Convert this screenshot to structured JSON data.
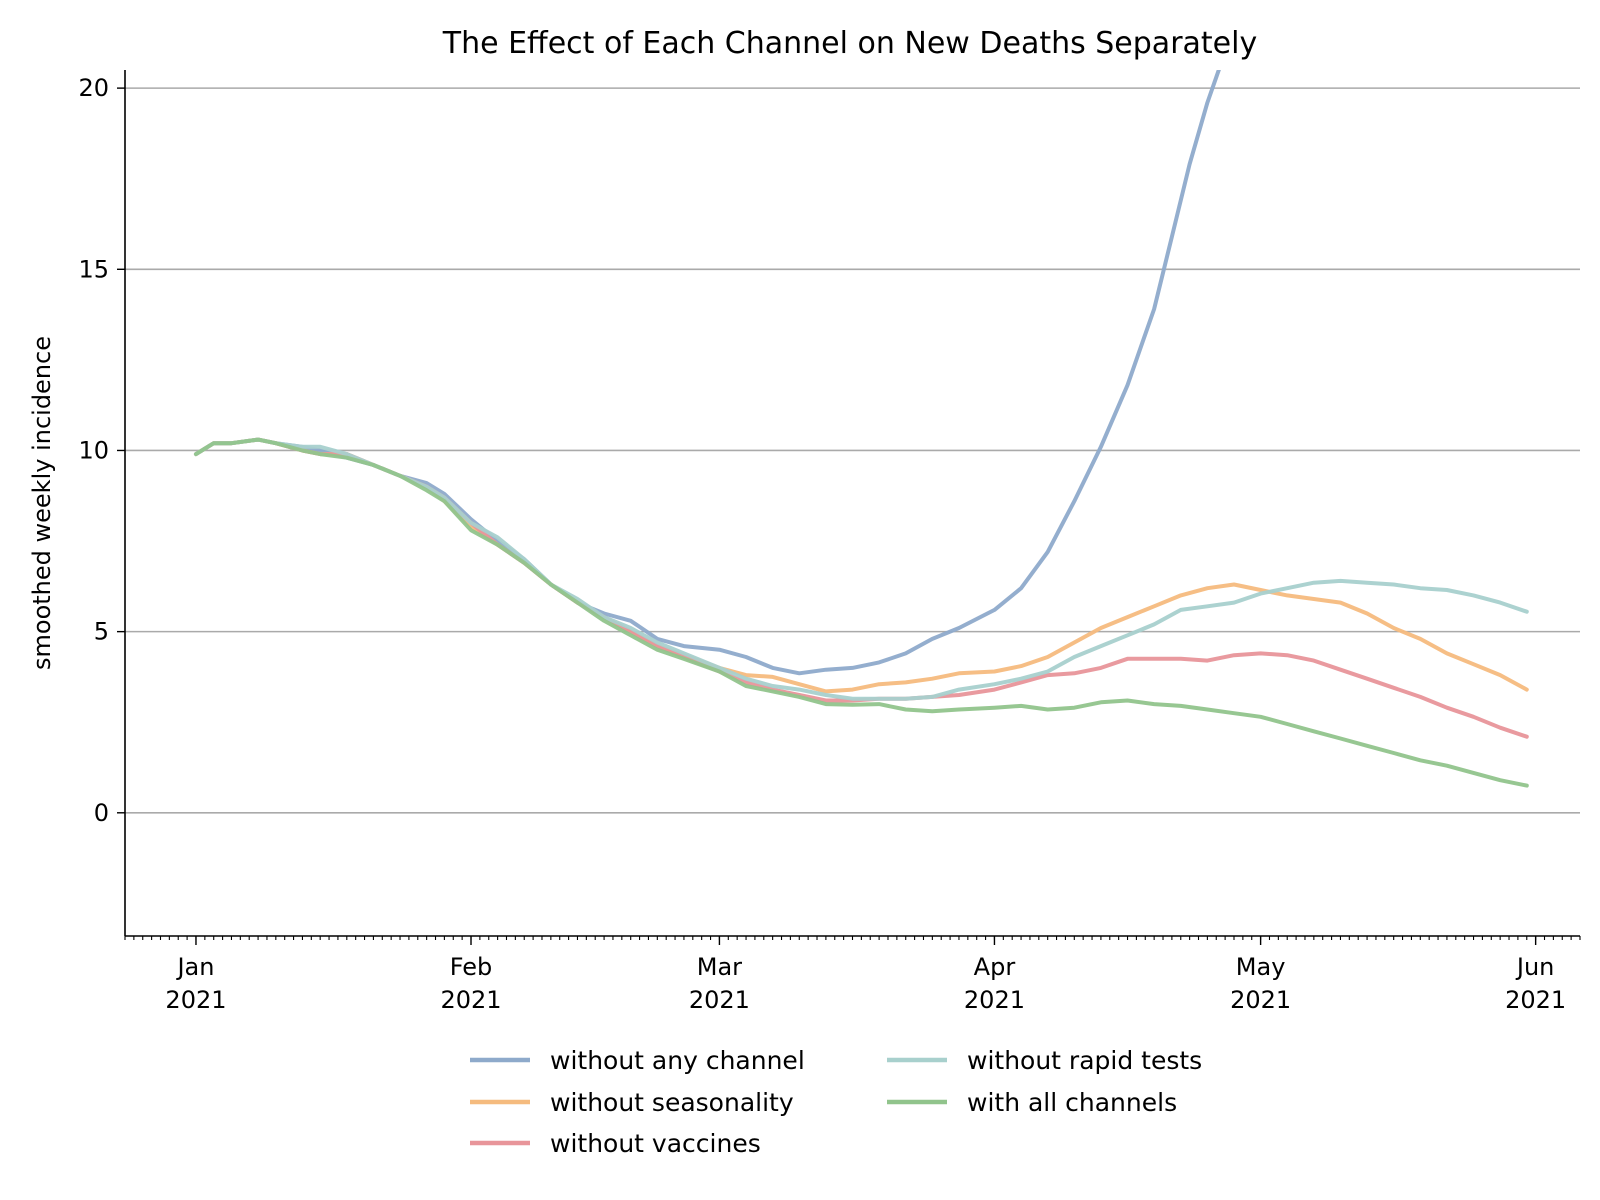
{
  "chart_data": {
    "type": "line",
    "title": "The Effect of Each Channel on New Deaths Separately",
    "xlabel": "",
    "ylabel": "smoothed weekly incidence",
    "x_range": [
      "2020-12-24",
      "2021-06-06"
    ],
    "ylim": [
      -3.4,
      20.5
    ],
    "y_ticks": [
      0,
      5,
      10,
      15,
      20
    ],
    "x_ticks": [
      {
        "date": "2021-01-01",
        "month": "Jan",
        "year": "2021"
      },
      {
        "date": "2021-02-01",
        "month": "Feb",
        "year": "2021"
      },
      {
        "date": "2021-03-01",
        "month": "Mar",
        "year": "2021"
      },
      {
        "date": "2021-04-01",
        "month": "Apr",
        "year": "2021"
      },
      {
        "date": "2021-05-01",
        "month": "May",
        "year": "2021"
      },
      {
        "date": "2021-06-01",
        "month": "Jun",
        "year": "2021"
      }
    ],
    "grid": "horizontal",
    "legend_position": "bottom-center",
    "series": [
      {
        "name": "without any channel",
        "color": "#8eaacb",
        "x": [
          "2021-01-01",
          "2021-01-03",
          "2021-01-05",
          "2021-01-08",
          "2021-01-10",
          "2021-01-13",
          "2021-01-15",
          "2021-01-18",
          "2021-01-21",
          "2021-01-24",
          "2021-01-27",
          "2021-01-29",
          "2021-02-01",
          "2021-02-04",
          "2021-02-07",
          "2021-02-10",
          "2021-02-13",
          "2021-02-16",
          "2021-02-19",
          "2021-02-22",
          "2021-02-25",
          "2021-03-01",
          "2021-03-04",
          "2021-03-07",
          "2021-03-10",
          "2021-03-13",
          "2021-03-16",
          "2021-03-19",
          "2021-03-22",
          "2021-03-25",
          "2021-03-28",
          "2021-04-01",
          "2021-04-04",
          "2021-04-07",
          "2021-04-10",
          "2021-04-13",
          "2021-04-16",
          "2021-04-19",
          "2021-04-21",
          "2021-04-23",
          "2021-04-25",
          "2021-04-27",
          "2021-04-28"
        ],
        "y": [
          9.9,
          10.2,
          10.2,
          10.3,
          10.2,
          10.1,
          10.0,
          9.8,
          9.6,
          9.3,
          9.1,
          8.8,
          8.1,
          7.5,
          7.0,
          6.3,
          5.8,
          5.5,
          5.3,
          4.8,
          4.6,
          4.5,
          4.3,
          4.0,
          3.85,
          3.95,
          4.0,
          4.15,
          4.4,
          4.8,
          5.1,
          5.6,
          6.2,
          7.2,
          8.6,
          10.1,
          11.8,
          13.9,
          15.9,
          17.9,
          19.6,
          21.0,
          21.5
        ]
      },
      {
        "name": "without seasonality",
        "color": "#f5bb7e",
        "x": [
          "2021-01-01",
          "2021-01-03",
          "2021-01-05",
          "2021-01-08",
          "2021-01-10",
          "2021-01-13",
          "2021-01-15",
          "2021-01-18",
          "2021-01-21",
          "2021-01-24",
          "2021-01-27",
          "2021-01-29",
          "2021-02-01",
          "2021-02-04",
          "2021-02-07",
          "2021-02-10",
          "2021-02-13",
          "2021-02-16",
          "2021-02-19",
          "2021-02-22",
          "2021-02-25",
          "2021-03-01",
          "2021-03-04",
          "2021-03-07",
          "2021-03-10",
          "2021-03-13",
          "2021-03-16",
          "2021-03-19",
          "2021-03-22",
          "2021-03-25",
          "2021-03-28",
          "2021-04-01",
          "2021-04-04",
          "2021-04-07",
          "2021-04-10",
          "2021-04-13",
          "2021-04-16",
          "2021-04-19",
          "2021-04-22",
          "2021-04-25",
          "2021-04-28",
          "2021-05-01",
          "2021-05-04",
          "2021-05-07",
          "2021-05-10",
          "2021-05-13",
          "2021-05-16",
          "2021-05-19",
          "2021-05-22",
          "2021-05-25",
          "2021-05-28",
          "2021-05-31"
        ],
        "y": [
          9.9,
          10.2,
          10.2,
          10.3,
          10.2,
          10.0,
          9.9,
          9.9,
          9.6,
          9.3,
          9.0,
          8.6,
          7.9,
          7.4,
          6.9,
          6.3,
          5.8,
          5.4,
          5.0,
          4.6,
          4.35,
          4.0,
          3.8,
          3.75,
          3.55,
          3.35,
          3.4,
          3.55,
          3.6,
          3.7,
          3.85,
          3.9,
          4.05,
          4.3,
          4.7,
          5.1,
          5.4,
          5.7,
          6.0,
          6.2,
          6.3,
          6.15,
          6.0,
          5.9,
          5.8,
          5.5,
          5.1,
          4.8,
          4.4,
          4.1,
          3.8,
          3.4
        ]
      },
      {
        "name": "without vaccines",
        "color": "#e8959a",
        "x": [
          "2021-01-01",
          "2021-01-03",
          "2021-01-05",
          "2021-01-08",
          "2021-01-10",
          "2021-01-13",
          "2021-01-15",
          "2021-01-18",
          "2021-01-21",
          "2021-01-24",
          "2021-01-27",
          "2021-01-29",
          "2021-02-01",
          "2021-02-04",
          "2021-02-07",
          "2021-02-10",
          "2021-02-13",
          "2021-02-16",
          "2021-02-19",
          "2021-02-22",
          "2021-02-25",
          "2021-03-01",
          "2021-03-04",
          "2021-03-07",
          "2021-03-10",
          "2021-03-13",
          "2021-03-16",
          "2021-03-19",
          "2021-03-22",
          "2021-03-25",
          "2021-03-28",
          "2021-04-01",
          "2021-04-04",
          "2021-04-07",
          "2021-04-10",
          "2021-04-13",
          "2021-04-16",
          "2021-04-19",
          "2021-04-22",
          "2021-04-25",
          "2021-04-28",
          "2021-05-01",
          "2021-05-04",
          "2021-05-07",
          "2021-05-10",
          "2021-05-13",
          "2021-05-16",
          "2021-05-19",
          "2021-05-22",
          "2021-05-25",
          "2021-05-28",
          "2021-05-31"
        ],
        "y": [
          9.9,
          10.2,
          10.2,
          10.3,
          10.2,
          10.0,
          9.9,
          9.9,
          9.6,
          9.3,
          9.0,
          8.7,
          8.0,
          7.4,
          6.9,
          6.3,
          5.8,
          5.4,
          5.0,
          4.6,
          4.3,
          3.9,
          3.6,
          3.4,
          3.25,
          3.1,
          3.1,
          3.15,
          3.15,
          3.2,
          3.25,
          3.4,
          3.6,
          3.8,
          3.85,
          4.0,
          4.25,
          4.25,
          4.25,
          4.2,
          4.35,
          4.4,
          4.35,
          4.2,
          3.95,
          3.7,
          3.45,
          3.2,
          2.9,
          2.65,
          2.35,
          2.1
        ]
      },
      {
        "name": "without rapid tests",
        "color": "#a8d0cd",
        "x": [
          "2021-01-01",
          "2021-01-03",
          "2021-01-05",
          "2021-01-08",
          "2021-01-10",
          "2021-01-13",
          "2021-01-15",
          "2021-01-18",
          "2021-01-21",
          "2021-01-24",
          "2021-01-27",
          "2021-01-29",
          "2021-02-01",
          "2021-02-04",
          "2021-02-07",
          "2021-02-10",
          "2021-02-13",
          "2021-02-16",
          "2021-02-19",
          "2021-02-22",
          "2021-02-25",
          "2021-03-01",
          "2021-03-04",
          "2021-03-07",
          "2021-03-10",
          "2021-03-13",
          "2021-03-16",
          "2021-03-19",
          "2021-03-22",
          "2021-03-25",
          "2021-03-28",
          "2021-04-01",
          "2021-04-04",
          "2021-04-07",
          "2021-04-10",
          "2021-04-13",
          "2021-04-16",
          "2021-04-19",
          "2021-04-22",
          "2021-04-25",
          "2021-04-28",
          "2021-05-01",
          "2021-05-04",
          "2021-05-07",
          "2021-05-10",
          "2021-05-13",
          "2021-05-16",
          "2021-05-19",
          "2021-05-22",
          "2021-05-25",
          "2021-05-28",
          "2021-05-31"
        ],
        "y": [
          9.9,
          10.2,
          10.2,
          10.3,
          10.2,
          10.1,
          10.1,
          9.9,
          9.6,
          9.3,
          9.0,
          8.7,
          8.0,
          7.6,
          7.0,
          6.3,
          5.9,
          5.4,
          5.1,
          4.7,
          4.4,
          4.0,
          3.7,
          3.5,
          3.4,
          3.25,
          3.15,
          3.15,
          3.15,
          3.2,
          3.4,
          3.55,
          3.7,
          3.9,
          4.3,
          4.6,
          4.9,
          5.2,
          5.6,
          5.7,
          5.8,
          6.05,
          6.2,
          6.35,
          6.4,
          6.35,
          6.3,
          6.2,
          6.15,
          6.0,
          5.8,
          5.55
        ]
      },
      {
        "name": "with all channels",
        "color": "#91c48c",
        "x": [
          "2021-01-01",
          "2021-01-03",
          "2021-01-05",
          "2021-01-08",
          "2021-01-10",
          "2021-01-13",
          "2021-01-15",
          "2021-01-18",
          "2021-01-21",
          "2021-01-24",
          "2021-01-27",
          "2021-01-29",
          "2021-02-01",
          "2021-02-04",
          "2021-02-07",
          "2021-02-10",
          "2021-02-13",
          "2021-02-16",
          "2021-02-19",
          "2021-02-22",
          "2021-02-25",
          "2021-03-01",
          "2021-03-04",
          "2021-03-07",
          "2021-03-10",
          "2021-03-13",
          "2021-03-16",
          "2021-03-19",
          "2021-03-22",
          "2021-03-25",
          "2021-03-28",
          "2021-04-01",
          "2021-04-04",
          "2021-04-07",
          "2021-04-10",
          "2021-04-13",
          "2021-04-16",
          "2021-04-19",
          "2021-04-22",
          "2021-04-25",
          "2021-04-28",
          "2021-05-01",
          "2021-05-04",
          "2021-05-07",
          "2021-05-10",
          "2021-05-13",
          "2021-05-16",
          "2021-05-19",
          "2021-05-22",
          "2021-05-25",
          "2021-05-28",
          "2021-05-31"
        ],
        "y": [
          9.9,
          10.2,
          10.2,
          10.3,
          10.2,
          10.0,
          9.9,
          9.8,
          9.6,
          9.3,
          8.9,
          8.6,
          7.8,
          7.4,
          6.9,
          6.3,
          5.8,
          5.3,
          4.9,
          4.5,
          4.25,
          3.9,
          3.5,
          3.35,
          3.2,
          3.0,
          2.98,
          3.0,
          2.85,
          2.8,
          2.85,
          2.9,
          2.95,
          2.85,
          2.9,
          3.05,
          3.1,
          3.0,
          2.95,
          2.85,
          2.75,
          2.65,
          2.45,
          2.25,
          2.05,
          1.85,
          1.65,
          1.45,
          1.3,
          1.1,
          0.9,
          0.75
        ]
      }
    ]
  }
}
